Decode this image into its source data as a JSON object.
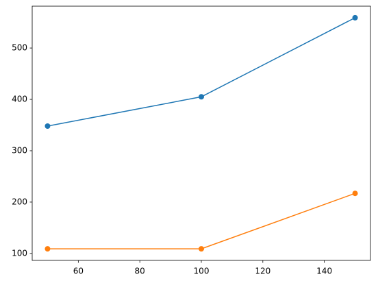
{
  "chart_data": {
    "type": "line",
    "x": [
      50,
      100,
      150
    ],
    "series": [
      {
        "color": "#1f77b4",
        "values": [
          348,
          405,
          559
        ]
      },
      {
        "color": "#ff7f0e",
        "values": [
          109,
          109,
          217
        ]
      }
    ],
    "xlim": [
      45,
      155
    ],
    "xticks": [
      60,
      80,
      100,
      120,
      140
    ],
    "ylim": [
      86.5,
      581.5
    ],
    "yticks": [
      100,
      200,
      300,
      400,
      500
    ],
    "markers": true
  }
}
